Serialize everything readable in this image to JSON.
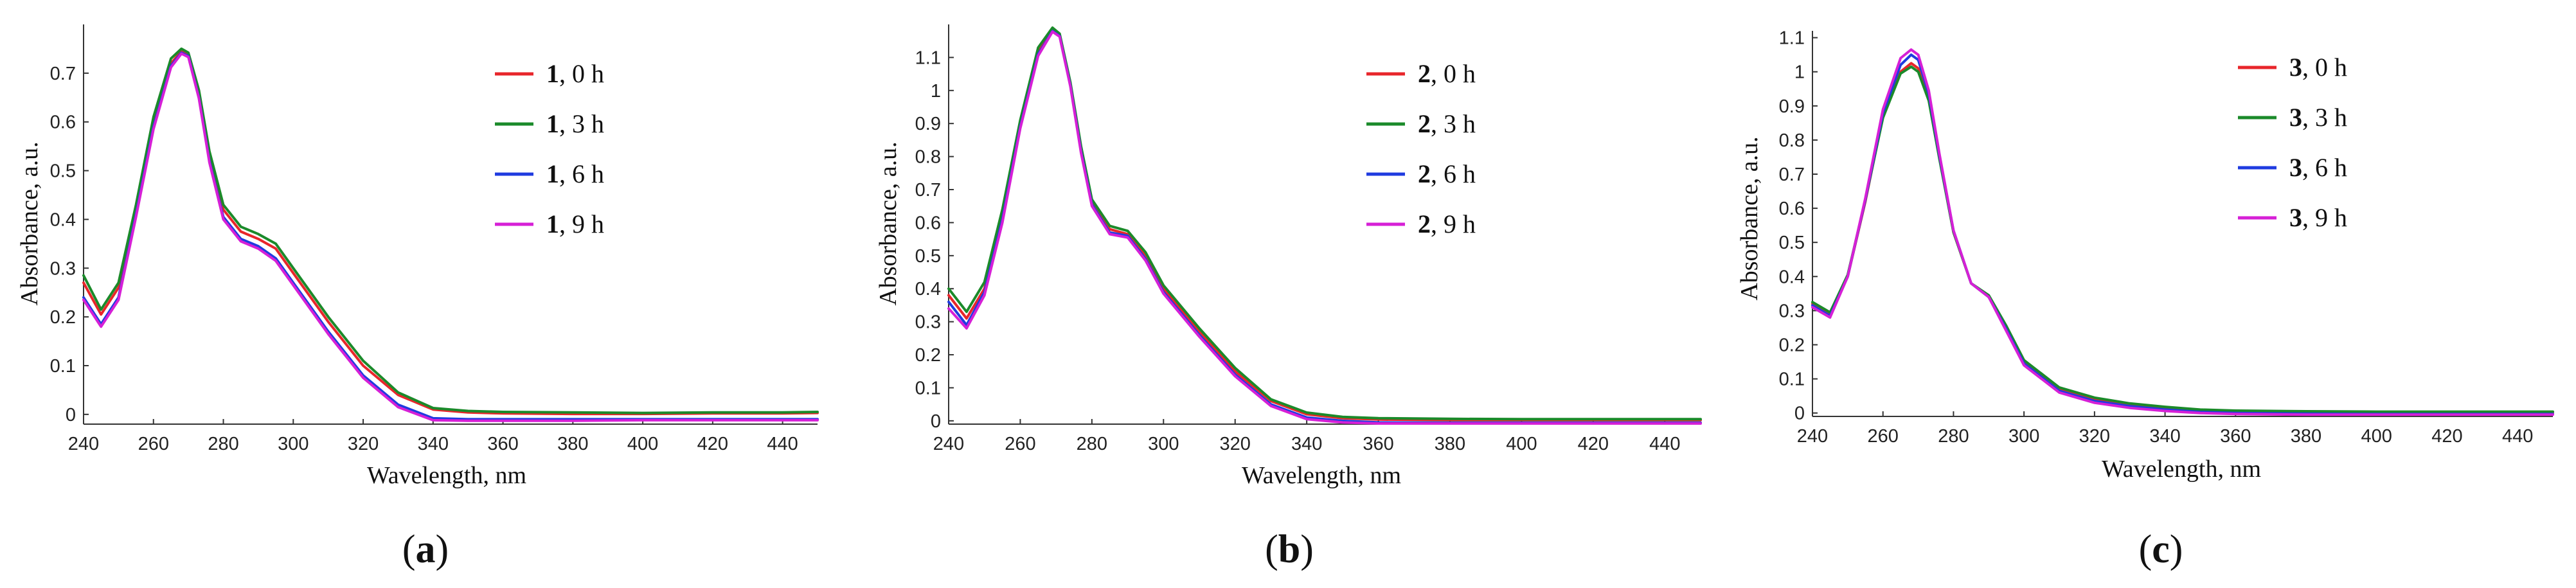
{
  "chart_data": [
    {
      "type": "line",
      "panel_label": "a",
      "xlabel": "Wavelength, nm",
      "ylabel": "Absorbance, a.u.",
      "xlim": [
        240,
        450
      ],
      "ylim": [
        -0.02,
        0.8
      ],
      "x_ticks": [
        240,
        260,
        280,
        300,
        320,
        340,
        360,
        380,
        400,
        420,
        440
      ],
      "y_ticks": [
        0,
        0.1,
        0.2,
        0.3,
        0.4,
        0.5,
        0.6,
        0.7
      ],
      "y_tick_labels": [
        "0",
        "0.1",
        "0.2",
        "0.3",
        "0.4",
        "0.5",
        "0.6",
        "0.7"
      ],
      "legend_position": "top-right",
      "x": [
        240,
        245,
        250,
        255,
        260,
        265,
        268,
        270,
        273,
        276,
        280,
        285,
        290,
        295,
        300,
        310,
        320,
        330,
        340,
        350,
        360,
        380,
        400,
        420,
        440,
        450
      ],
      "series": [
        {
          "compound": "1",
          "time": ", 0 h",
          "color": "#e8262b",
          "values": [
            0.27,
            0.205,
            0.26,
            0.42,
            0.6,
            0.72,
            0.745,
            0.74,
            0.66,
            0.53,
            0.42,
            0.375,
            0.36,
            0.34,
            0.29,
            0.19,
            0.1,
            0.04,
            0.01,
            0.004,
            0.002,
            0.001,
            0.001,
            0.002,
            0.002,
            0.003
          ]
        },
        {
          "compound": "1",
          "time": ", 3 h",
          "color": "#1b8a2a",
          "values": [
            0.285,
            0.215,
            0.27,
            0.43,
            0.61,
            0.73,
            0.75,
            0.742,
            0.665,
            0.54,
            0.43,
            0.385,
            0.37,
            0.35,
            0.3,
            0.2,
            0.11,
            0.045,
            0.013,
            0.007,
            0.005,
            0.004,
            0.003,
            0.004,
            0.004,
            0.005
          ]
        },
        {
          "compound": "1",
          "time": ", 6 h",
          "color": "#1f3be0",
          "values": [
            0.24,
            0.185,
            0.24,
            0.41,
            0.59,
            0.715,
            0.742,
            0.735,
            0.65,
            0.52,
            0.405,
            0.36,
            0.345,
            0.32,
            0.27,
            0.17,
            0.08,
            0.02,
            -0.008,
            -0.01,
            -0.01,
            -0.01,
            -0.01,
            -0.01,
            -0.01,
            -0.01
          ]
        },
        {
          "compound": "1",
          "time": ", 9 h",
          "color": "#d620d6",
          "values": [
            0.235,
            0.18,
            0.235,
            0.405,
            0.585,
            0.712,
            0.74,
            0.733,
            0.648,
            0.517,
            0.4,
            0.355,
            0.34,
            0.315,
            0.265,
            0.165,
            0.075,
            0.015,
            -0.012,
            -0.013,
            -0.013,
            -0.013,
            -0.012,
            -0.012,
            -0.012,
            -0.012
          ]
        }
      ]
    },
    {
      "type": "line",
      "panel_label": "b",
      "xlabel": "Wavelength, nm",
      "ylabel": "Absorbance, a.u.",
      "xlim": [
        240,
        450
      ],
      "ylim": [
        -0.01,
        1.2
      ],
      "x_ticks": [
        240,
        260,
        280,
        300,
        320,
        340,
        360,
        380,
        400,
        420,
        440
      ],
      "y_ticks": [
        0,
        0.1,
        0.2,
        0.3,
        0.4,
        0.5,
        0.6,
        0.7,
        0.8,
        0.9,
        1,
        1.1
      ],
      "y_tick_labels": [
        "0",
        "0.1",
        "0.2",
        "0.3",
        "0.4",
        "0.5",
        "0.6",
        "0.7",
        "0.8",
        "0.9",
        "1",
        "1.1"
      ],
      "legend_position": "top-right",
      "x": [
        240,
        245,
        250,
        255,
        260,
        265,
        269,
        271,
        274,
        277,
        280,
        285,
        290,
        295,
        300,
        310,
        320,
        330,
        340,
        350,
        360,
        380,
        400,
        420,
        440,
        450
      ],
      "series": [
        {
          "compound": "2",
          "time": ", 0 h",
          "color": "#e8262b",
          "values": [
            0.38,
            0.31,
            0.4,
            0.62,
            0.9,
            1.12,
            1.185,
            1.17,
            1.02,
            0.82,
            0.66,
            0.58,
            0.565,
            0.5,
            0.4,
            0.27,
            0.15,
            0.06,
            0.02,
            0.008,
            0.004,
            0.002,
            0.002,
            0.002,
            0.002,
            0.002
          ]
        },
        {
          "compound": "2",
          "time": ", 3 h",
          "color": "#1b8a2a",
          "values": [
            0.4,
            0.33,
            0.42,
            0.64,
            0.91,
            1.13,
            1.19,
            1.172,
            1.025,
            0.83,
            0.67,
            0.59,
            0.575,
            0.51,
            0.41,
            0.28,
            0.16,
            0.065,
            0.025,
            0.012,
            0.008,
            0.006,
            0.005,
            0.005,
            0.005,
            0.005
          ]
        },
        {
          "compound": "2",
          "time": ", 6 h",
          "color": "#1f3be0",
          "values": [
            0.36,
            0.29,
            0.39,
            0.61,
            0.89,
            1.11,
            1.18,
            1.165,
            1.015,
            0.815,
            0.655,
            0.57,
            0.56,
            0.49,
            0.39,
            0.26,
            0.14,
            0.05,
            0.01,
            0.0,
            -0.005,
            -0.006,
            -0.006,
            -0.006,
            -0.006,
            -0.006
          ]
        },
        {
          "compound": "2",
          "time": ", 9 h",
          "color": "#d620d6",
          "values": [
            0.34,
            0.28,
            0.38,
            0.6,
            0.885,
            1.105,
            1.178,
            1.163,
            1.012,
            0.81,
            0.65,
            0.565,
            0.555,
            0.485,
            0.385,
            0.255,
            0.135,
            0.045,
            0.005,
            -0.005,
            -0.008,
            -0.008,
            -0.008,
            -0.008,
            -0.008,
            -0.008
          ]
        }
      ]
    },
    {
      "type": "line",
      "panel_label": "c",
      "xlabel": "Wavelength, nm",
      "ylabel": "Absorbance, a.u.",
      "xlim": [
        240,
        450
      ],
      "ylim": [
        -0.01,
        1.12
      ],
      "x_ticks": [
        240,
        260,
        280,
        300,
        320,
        340,
        360,
        380,
        400,
        420,
        440
      ],
      "y_ticks": [
        0,
        0.1,
        0.2,
        0.3,
        0.4,
        0.5,
        0.6,
        0.7,
        0.8,
        0.9,
        1,
        1.1
      ],
      "y_tick_labels": [
        "0",
        "0.1",
        "0.2",
        "0.3",
        "0.4",
        "0.5",
        "0.6",
        "0.7",
        "0.8",
        "0.9",
        "1",
        "1.1"
      ],
      "legend_position": "top-right",
      "x": [
        240,
        245,
        250,
        255,
        260,
        265,
        268,
        270,
        273,
        276,
        280,
        285,
        290,
        295,
        300,
        310,
        320,
        330,
        340,
        350,
        360,
        380,
        400,
        420,
        440,
        450
      ],
      "series": [
        {
          "compound": "3",
          "time": ", 0 h",
          "color": "#e8262b",
          "values": [
            0.32,
            0.29,
            0.4,
            0.62,
            0.87,
            1.0,
            1.025,
            1.01,
            0.92,
            0.75,
            0.53,
            0.38,
            0.34,
            0.25,
            0.15,
            0.07,
            0.04,
            0.025,
            0.015,
            0.008,
            0.005,
            0.003,
            0.002,
            0.002,
            0.002,
            0.002
          ]
        },
        {
          "compound": "3",
          "time": ", 3 h",
          "color": "#1b8a2a",
          "values": [
            0.325,
            0.295,
            0.405,
            0.625,
            0.865,
            0.995,
            1.015,
            1.0,
            0.915,
            0.745,
            0.53,
            0.38,
            0.345,
            0.255,
            0.155,
            0.075,
            0.045,
            0.028,
            0.018,
            0.01,
            0.007,
            0.005,
            0.004,
            0.004,
            0.004,
            0.004
          ]
        },
        {
          "compound": "3",
          "time": ", 6 h",
          "color": "#1f3be0",
          "values": [
            0.315,
            0.285,
            0.4,
            0.625,
            0.88,
            1.02,
            1.05,
            1.035,
            0.935,
            0.755,
            0.535,
            0.38,
            0.34,
            0.245,
            0.145,
            0.065,
            0.035,
            0.02,
            0.01,
            0.003,
            0.0,
            -0.002,
            -0.003,
            -0.003,
            -0.003,
            -0.003
          ]
        },
        {
          "compound": "3",
          "time": ", 9 h",
          "color": "#d620d6",
          "values": [
            0.31,
            0.28,
            0.4,
            0.63,
            0.89,
            1.04,
            1.065,
            1.05,
            0.945,
            0.76,
            0.535,
            0.38,
            0.34,
            0.24,
            0.14,
            0.06,
            0.03,
            0.015,
            0.006,
            0.0,
            -0.003,
            -0.005,
            -0.005,
            -0.005,
            -0.005,
            -0.005
          ]
        }
      ]
    }
  ]
}
